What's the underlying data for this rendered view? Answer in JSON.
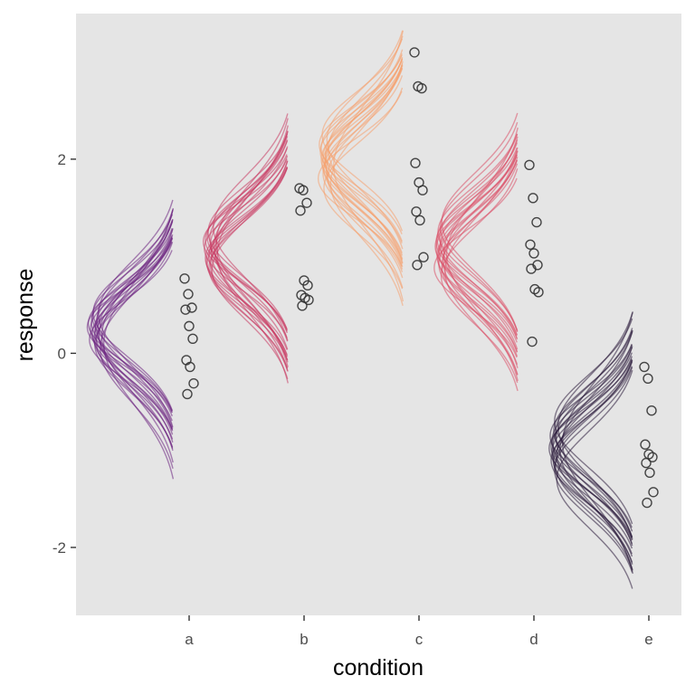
{
  "chart_data": {
    "type": "scatter",
    "subtype": "posterior density curves (halfeye-style) with observed points",
    "title": "",
    "xlabel": "condition",
    "ylabel": "response",
    "categories": [
      "a",
      "b",
      "c",
      "d",
      "e"
    ],
    "y_ticks": [
      -2,
      0,
      2
    ],
    "y_tick_labels": [
      "-2",
      "0",
      "2"
    ],
    "ylim": [
      -2.7,
      3.5
    ],
    "grid": false,
    "legend": "none",
    "background_color": "#e5e5e5",
    "point_style": "open circle",
    "point_color": "#333333",
    "curve_colors": {
      "a": "#6b2380",
      "b": "#c93b63",
      "c": "#f6a06e",
      "d": "#db5068",
      "e": "#2a1a3a"
    },
    "points": {
      "a": [
        0.77,
        0.61,
        0.47,
        0.45,
        0.28,
        0.15,
        -0.07,
        -0.14,
        -0.31,
        -0.42
      ],
      "b": [
        1.7,
        1.68,
        1.55,
        1.47,
        0.75,
        0.7,
        0.6,
        0.57,
        0.55,
        0.49
      ],
      "c": [
        3.1,
        2.75,
        2.73,
        1.96,
        1.76,
        1.68,
        1.46,
        1.37,
        0.99,
        0.91
      ],
      "d": [
        1.94,
        1.6,
        1.35,
        1.12,
        1.03,
        0.91,
        0.87,
        0.66,
        0.63,
        0.12
      ],
      "e": [
        -0.14,
        -0.26,
        -0.59,
        -0.94,
        -1.04,
        -1.07,
        -1.13,
        -1.23,
        -1.43,
        -1.54
      ]
    },
    "posterior_draws": {
      "a": {
        "means": [
          0.28,
          0.05,
          0.15,
          0.31,
          0.41,
          0.2,
          0.14,
          0.35,
          0.1,
          0.32,
          0.22,
          0.27,
          0.18,
          0.42,
          0.12,
          0.25,
          0.19,
          0.09,
          0.38,
          0.23
        ],
        "sds": [
          0.48,
          0.55,
          0.46,
          0.4,
          0.52,
          0.44,
          0.41,
          0.5,
          0.62,
          0.43,
          0.47,
          0.39,
          0.58,
          0.45,
          0.49,
          0.42,
          0.53,
          0.47,
          0.44,
          0.51
        ]
      },
      "b": {
        "means": [
          1.12,
          0.98,
          1.05,
          1.2,
          0.88,
          1.15,
          1.3,
          1.02,
          0.95,
          1.18,
          1.08,
          0.86,
          1.25,
          1.1,
          0.92,
          1.03,
          1.17,
          1.0,
          1.14,
          0.9
        ],
        "sds": [
          0.48,
          0.42,
          0.55,
          0.44,
          0.46,
          0.4,
          0.52,
          0.59,
          0.43,
          0.47,
          0.41,
          0.5,
          0.45,
          0.53,
          0.44,
          0.49,
          0.42,
          0.46,
          0.57,
          0.48
        ]
      },
      "c": {
        "means": [
          1.95,
          2.05,
          1.8,
          2.1,
          1.9,
          2.0,
          2.2,
          1.85,
          2.15,
          1.75,
          1.98,
          2.08,
          1.88,
          2.25,
          1.93,
          2.02,
          1.82,
          2.12,
          1.7,
          1.97
        ],
        "sds": [
          0.44,
          0.48,
          0.4,
          0.52,
          0.46,
          0.43,
          0.5,
          0.45,
          0.41,
          0.56,
          0.47,
          0.42,
          0.49,
          0.44,
          0.62,
          0.45,
          0.51,
          0.43,
          0.46,
          0.48
        ]
      },
      "d": {
        "means": [
          1.05,
          0.9,
          1.15,
          1.3,
          0.85,
          1.0,
          1.2,
          0.95,
          1.1,
          1.25,
          0.8,
          1.02,
          1.18,
          0.92,
          1.08,
          1.35,
          0.98,
          1.12,
          0.88,
          1.04
        ],
        "sds": [
          0.46,
          0.5,
          0.43,
          0.48,
          0.55,
          0.44,
          0.47,
          0.52,
          0.42,
          0.45,
          0.49,
          0.58,
          0.44,
          0.46,
          0.43,
          0.5,
          0.45,
          0.48,
          0.41,
          0.53
        ]
      },
      "e": {
        "means": [
          -0.95,
          -1.05,
          -0.85,
          -1.15,
          -0.9,
          -1.0,
          -0.8,
          -1.1,
          -0.75,
          -1.2,
          -0.98,
          -0.88,
          -1.08,
          -0.92,
          -1.02,
          -0.82,
          -1.12,
          -0.96,
          -1.3,
          -0.7
        ],
        "sds": [
          0.45,
          0.5,
          0.42,
          0.48,
          0.44,
          0.55,
          0.46,
          0.43,
          0.52,
          0.47,
          0.41,
          0.49,
          0.45,
          0.6,
          0.44,
          0.48,
          0.46,
          0.43,
          0.5,
          0.47
        ]
      }
    }
  }
}
